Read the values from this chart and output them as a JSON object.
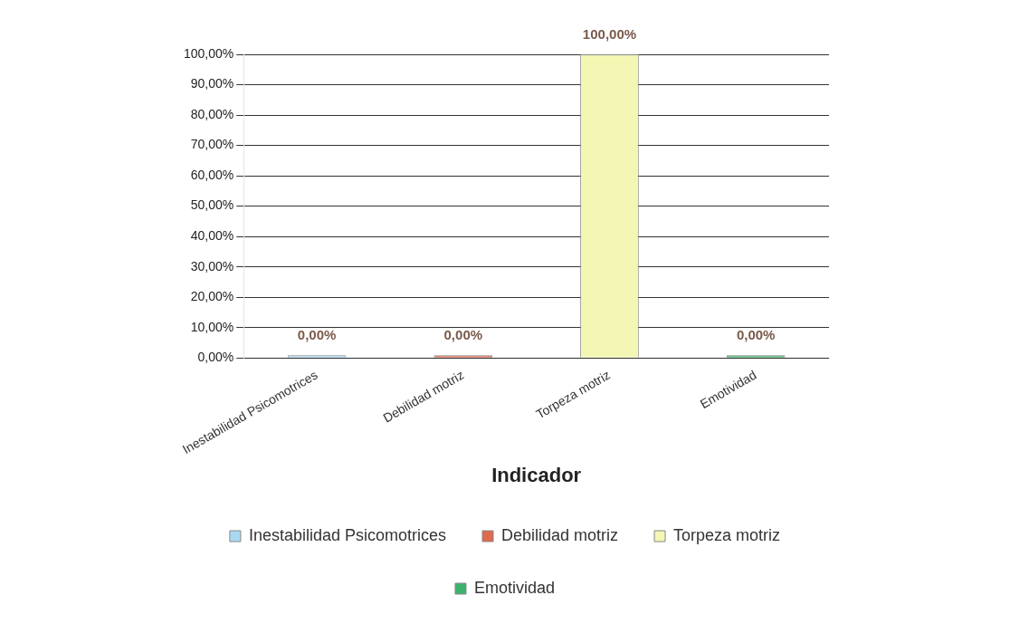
{
  "chart_data": {
    "type": "bar",
    "xlabel": "Indicador",
    "categories": [
      "Inestabilidad Psicomotrices",
      "Debilidad motriz",
      "Torpeza motriz",
      "Emotividad"
    ],
    "series": [
      {
        "name": "Inestabilidad Psicomotrices",
        "color": "#a9d9f2",
        "values": [
          0,
          null,
          null,
          null
        ],
        "value_labels": [
          "0,00%",
          null,
          null,
          null
        ]
      },
      {
        "name": "Debilidad motriz",
        "color": "#e06a4c",
        "values": [
          null,
          0,
          null,
          null
        ],
        "value_labels": [
          null,
          "0,00%",
          null,
          null
        ]
      },
      {
        "name": "Torpeza motriz",
        "color": "#f4f6b4",
        "values": [
          null,
          null,
          100,
          null
        ],
        "value_labels": [
          null,
          null,
          "100,00%",
          null
        ]
      },
      {
        "name": "Emotividad",
        "color": "#3cb36c",
        "values": [
          null,
          null,
          null,
          0
        ],
        "value_labels": [
          null,
          null,
          null,
          "0,00%"
        ]
      }
    ],
    "ylim": [
      0,
      100
    ],
    "yticks": [
      {
        "value": 0,
        "label": "0,00%"
      },
      {
        "value": 10,
        "label": "10,00%"
      },
      {
        "value": 20,
        "label": "20,00%"
      },
      {
        "value": 30,
        "label": "30,00%"
      },
      {
        "value": 40,
        "label": "40,00%"
      },
      {
        "value": 50,
        "label": "50,00%"
      },
      {
        "value": 60,
        "label": "60,00%"
      },
      {
        "value": 70,
        "label": "70,00%"
      },
      {
        "value": 80,
        "label": "80,00%"
      },
      {
        "value": 90,
        "label": "90,00%"
      },
      {
        "value": 100,
        "label": "100,00%"
      }
    ],
    "grid": "y",
    "legend": "bottom"
  }
}
